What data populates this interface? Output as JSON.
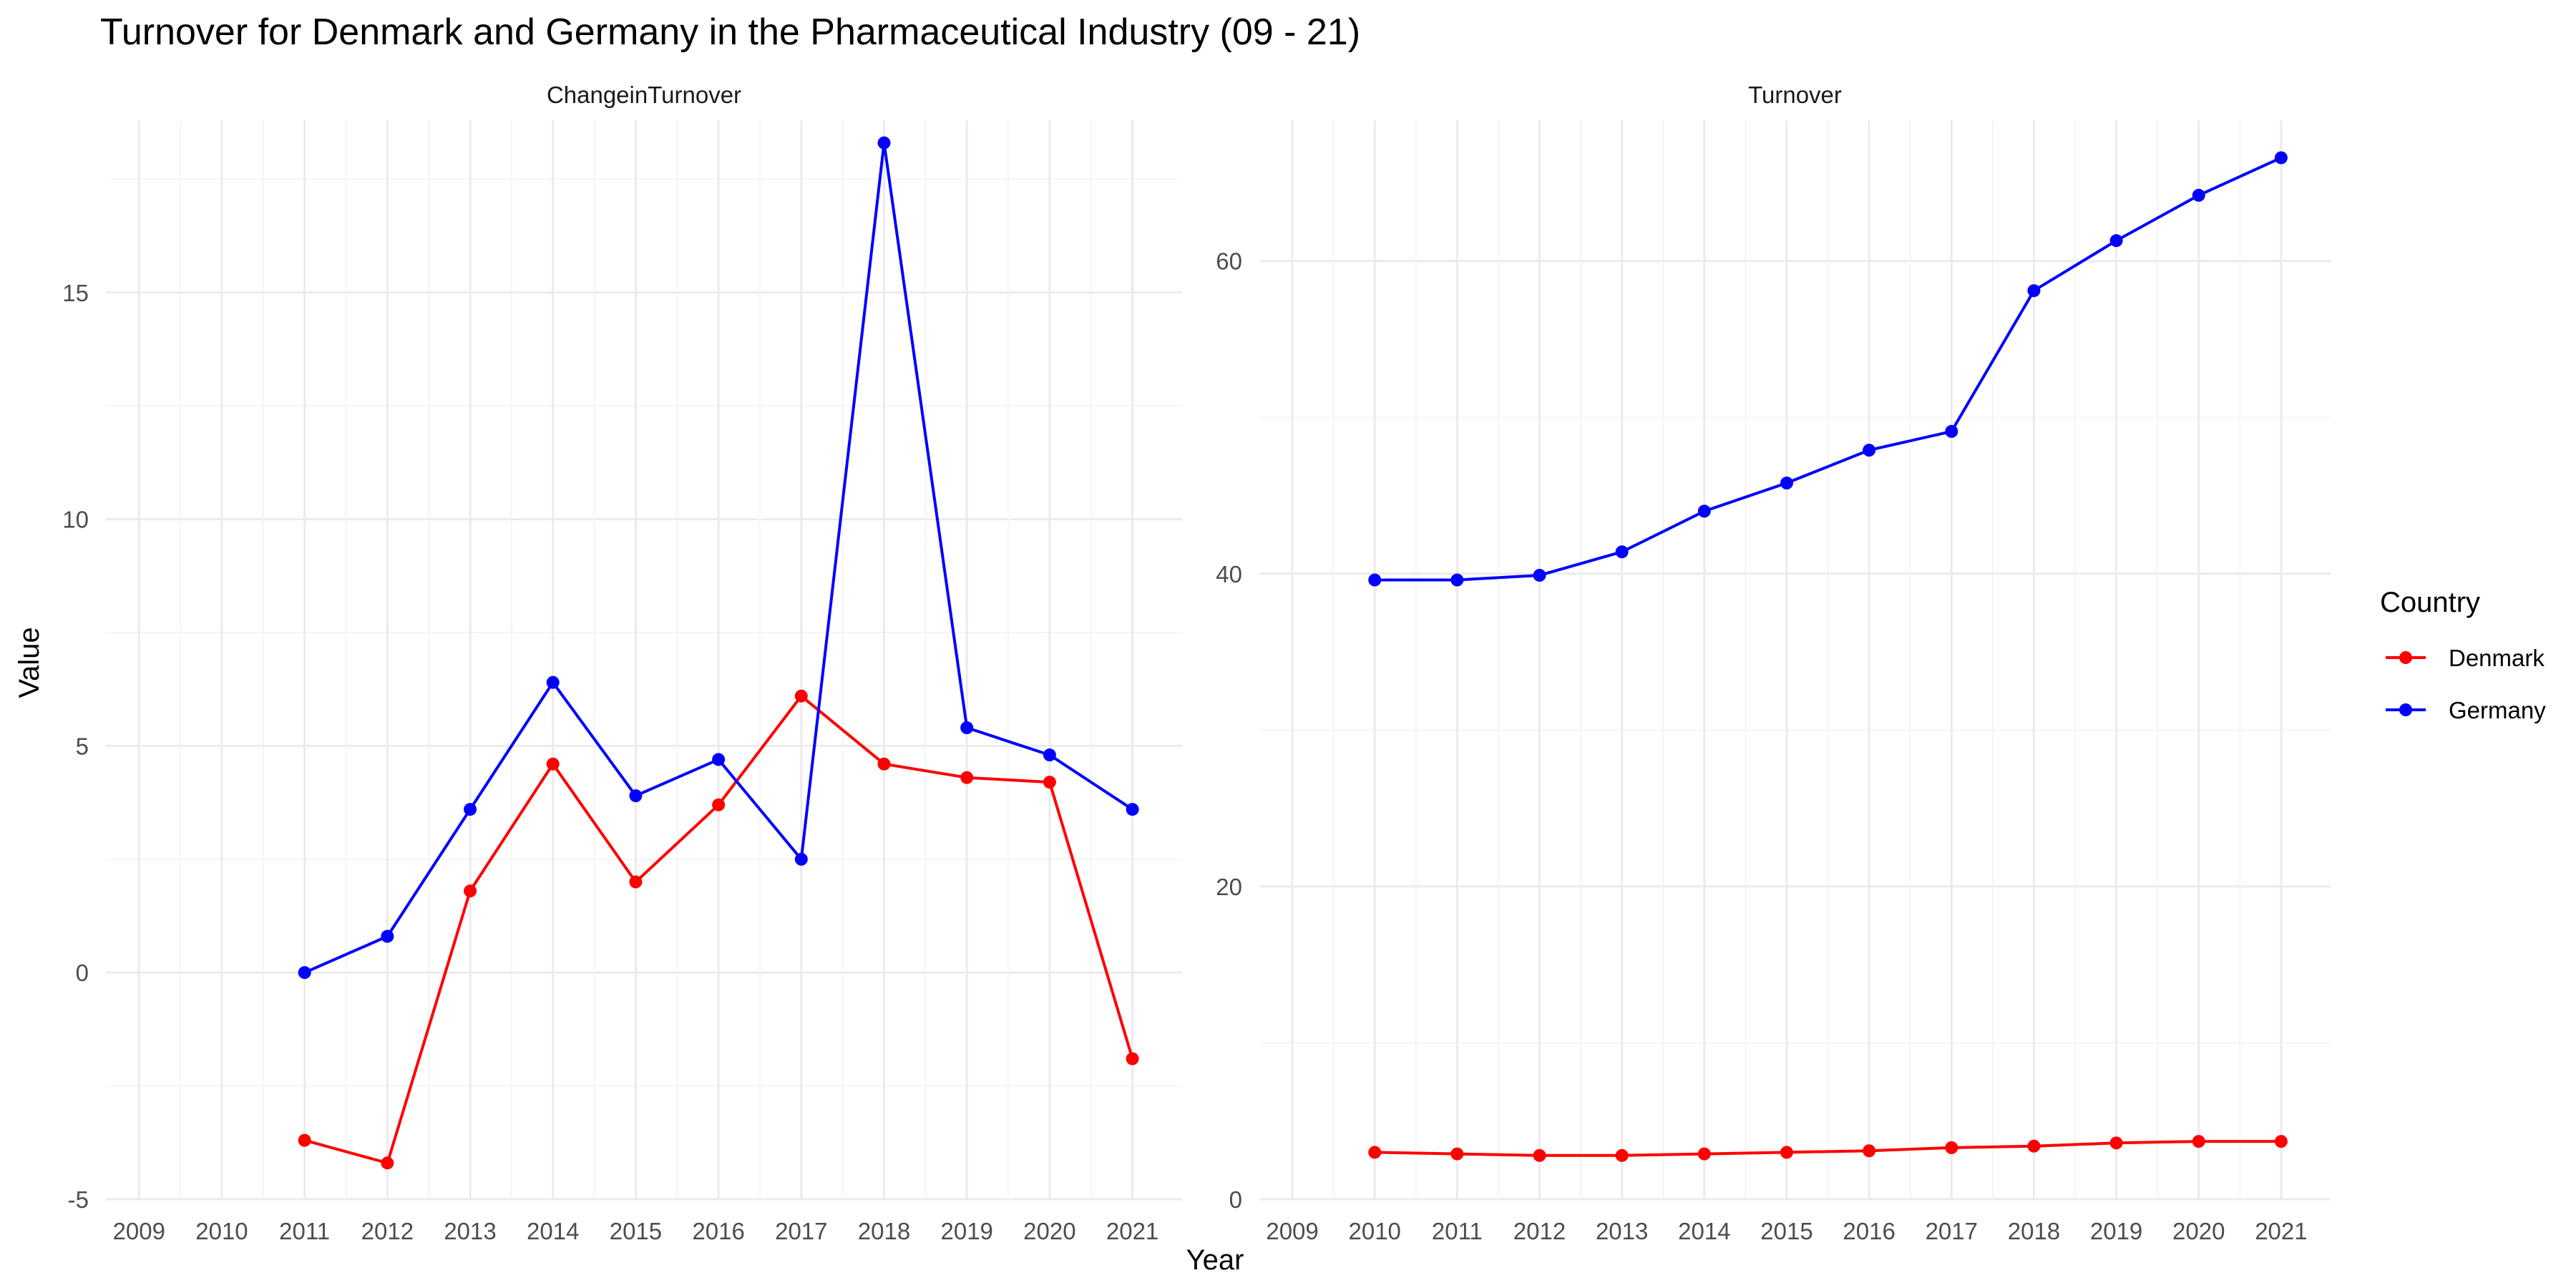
{
  "title": "Turnover for Denmark and Germany in the Pharmaceutical Industry (09 - 21)",
  "xlabel": "Year",
  "ylabel": "Value",
  "legend": {
    "title": "Country",
    "placement": "right",
    "entries": [
      {
        "name": "Denmark",
        "color": "#ff0000"
      },
      {
        "name": "Germany",
        "color": "#0000ff"
      }
    ]
  },
  "chart_data": [
    {
      "type": "line",
      "panel": "ChangeinTurnover",
      "x": [
        2009,
        2010,
        2011,
        2012,
        2013,
        2014,
        2015,
        2016,
        2017,
        2018,
        2019,
        2020,
        2021
      ],
      "xlim": [
        2008.6,
        2021.6
      ],
      "ylim": [
        -5,
        18.8
      ],
      "yticks": [
        -5,
        0,
        5,
        10,
        15
      ],
      "grid": true,
      "series": [
        {
          "name": "Denmark",
          "color": "#ff0000",
          "x": [
            2011,
            2012,
            2013,
            2014,
            2015,
            2016,
            2017,
            2018,
            2019,
            2020,
            2021
          ],
          "values": [
            -3.7,
            -4.2,
            1.8,
            4.6,
            2.0,
            3.7,
            6.1,
            4.6,
            4.3,
            4.2,
            -1.9
          ]
        },
        {
          "name": "Germany",
          "color": "#0000ff",
          "x": [
            2011,
            2012,
            2013,
            2014,
            2015,
            2016,
            2017,
            2018,
            2019,
            2020,
            2021
          ],
          "values": [
            0.0,
            0.8,
            3.6,
            6.4,
            3.9,
            4.7,
            2.5,
            18.3,
            5.4,
            4.8,
            3.6
          ]
        }
      ]
    },
    {
      "type": "line",
      "panel": "Turnover",
      "x": [
        2009,
        2010,
        2011,
        2012,
        2013,
        2014,
        2015,
        2016,
        2017,
        2018,
        2019,
        2020,
        2021
      ],
      "xlim": [
        2008.6,
        2021.6
      ],
      "ylim": [
        0,
        69
      ],
      "yticks": [
        0,
        20,
        40,
        60
      ],
      "grid": true,
      "series": [
        {
          "name": "Denmark",
          "color": "#ff0000",
          "x": [
            2010,
            2011,
            2012,
            2013,
            2014,
            2015,
            2016,
            2017,
            2018,
            2019,
            2020,
            2021
          ],
          "values": [
            3.0,
            2.9,
            2.8,
            2.8,
            2.9,
            3.0,
            3.1,
            3.3,
            3.4,
            3.6,
            3.7,
            3.7
          ]
        },
        {
          "name": "Germany",
          "color": "#0000ff",
          "x": [
            2010,
            2011,
            2012,
            2013,
            2014,
            2015,
            2016,
            2017,
            2018,
            2019,
            2020,
            2021
          ],
          "values": [
            39.6,
            39.6,
            39.9,
            41.4,
            44.0,
            45.8,
            47.9,
            49.1,
            58.1,
            61.3,
            64.2,
            66.6
          ]
        }
      ]
    }
  ]
}
